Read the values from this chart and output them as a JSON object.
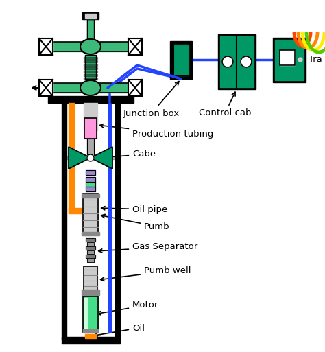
{
  "bg_color": "#ffffff",
  "labels": {
    "junction_box": "Junction box",
    "control_cab": "Control cab",
    "tra": "Tra",
    "production_tubing": "Production tubing",
    "cabe": "Cabe",
    "oil_pipe": "Oil pipe",
    "pumb": "Pumb",
    "gas_separator": "Gas Separator",
    "pumb_well": "Pumb well",
    "motor": "Motor",
    "oil": "Oil"
  },
  "colors": {
    "green": "#3dba7a",
    "dark_green": "#1a7a50",
    "blue": "#2244ff",
    "orange": "#ff8800",
    "pink": "#ff99dd",
    "gray": "#aaaaaa",
    "black": "#000000",
    "light_green": "#44dd88",
    "teal": "#009966",
    "yellow": "#ffee00",
    "red_arc": "#ff4400",
    "orange_arc": "#ff8800",
    "yellow_arc": "#ffee00",
    "green_arc": "#88cc00",
    "purple": "#9988cc",
    "white": "#ffffff",
    "lgray": "#cccccc",
    "dgray": "#888888"
  }
}
